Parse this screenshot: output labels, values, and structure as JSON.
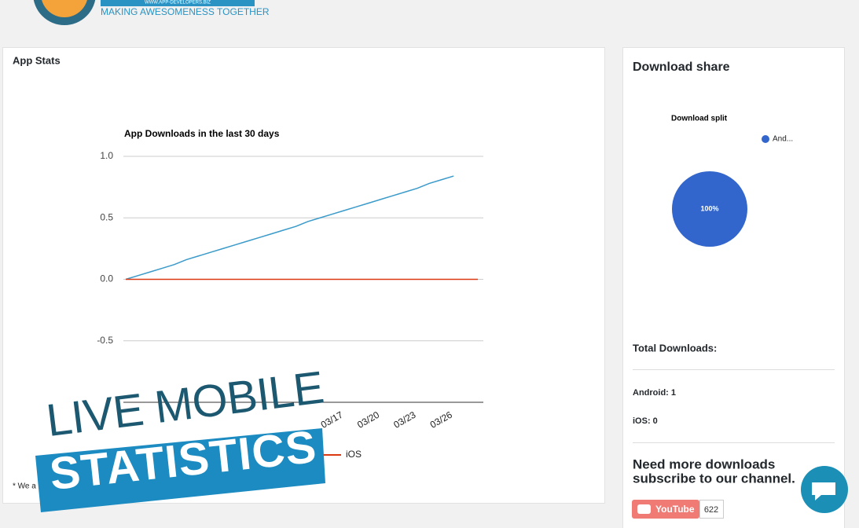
{
  "header": {
    "tagline": "MAKING AWESOMENESS TOGETHER",
    "url": "WWW.APP-DEVELOPERS.BIZ"
  },
  "app_stats": {
    "title": "App Stats",
    "footnote": "* We a"
  },
  "download_share": {
    "title": "Download share",
    "total_label": "Total Downloads:",
    "android": "Android: 1",
    "ios": "iOS: 0",
    "cta": [
      "Need more downloads",
      "subscribe to our channel."
    ],
    "youtube": "YouTube",
    "subscribers": "622"
  },
  "overlay": {
    "line1": "LIVE MOBILE",
    "line2": "STATISTICS"
  },
  "chart_data": [
    {
      "type": "line",
      "title": "App Downloads in the last 30 days",
      "categories": [
        null,
        null,
        null,
        null,
        null,
        null,
        null,
        null,
        null,
        null,
        null,
        null,
        null,
        null,
        null,
        null,
        null,
        "03/17",
        null,
        null,
        "03/20",
        null,
        null,
        "03/23",
        null,
        null,
        "03/26",
        null,
        null,
        null
      ],
      "series": [
        {
          "color": "#3a9ac9",
          "values": [
            0,
            0.03,
            0.06,
            0.09,
            0.12,
            0.16,
            0.19,
            0.22,
            0.25,
            0.28,
            0.31,
            0.34,
            0.37,
            0.4,
            0.43,
            0.47,
            0.5,
            0.53,
            0.56,
            0.59,
            0.62,
            0.65,
            0.68,
            0.71,
            0.74,
            0.78,
            0.81,
            0.84,
            null,
            null
          ]
        },
        {
          "name": "iOS",
          "color": "#dc3912",
          "values": [
            0,
            0,
            0,
            0,
            0,
            0,
            0,
            0,
            0,
            0,
            0,
            0,
            0,
            0,
            0,
            0,
            0,
            0,
            0,
            0,
            0,
            0,
            0,
            0,
            0,
            0,
            0,
            0,
            0,
            0
          ]
        }
      ],
      "ylim": [
        -1,
        1
      ],
      "yticks": [
        {
          "value": 1,
          "label": "1.0"
        },
        0.5,
        {
          "value": 0,
          "label": "0.0"
        },
        -0.5
      ],
      "grid": true
    },
    {
      "type": "pie",
      "title": "Download split",
      "categories": [
        "And..."
      ],
      "values": [
        100
      ],
      "value_labels": [
        "100%"
      ],
      "colors": [
        "#3366cc"
      ]
    }
  ]
}
